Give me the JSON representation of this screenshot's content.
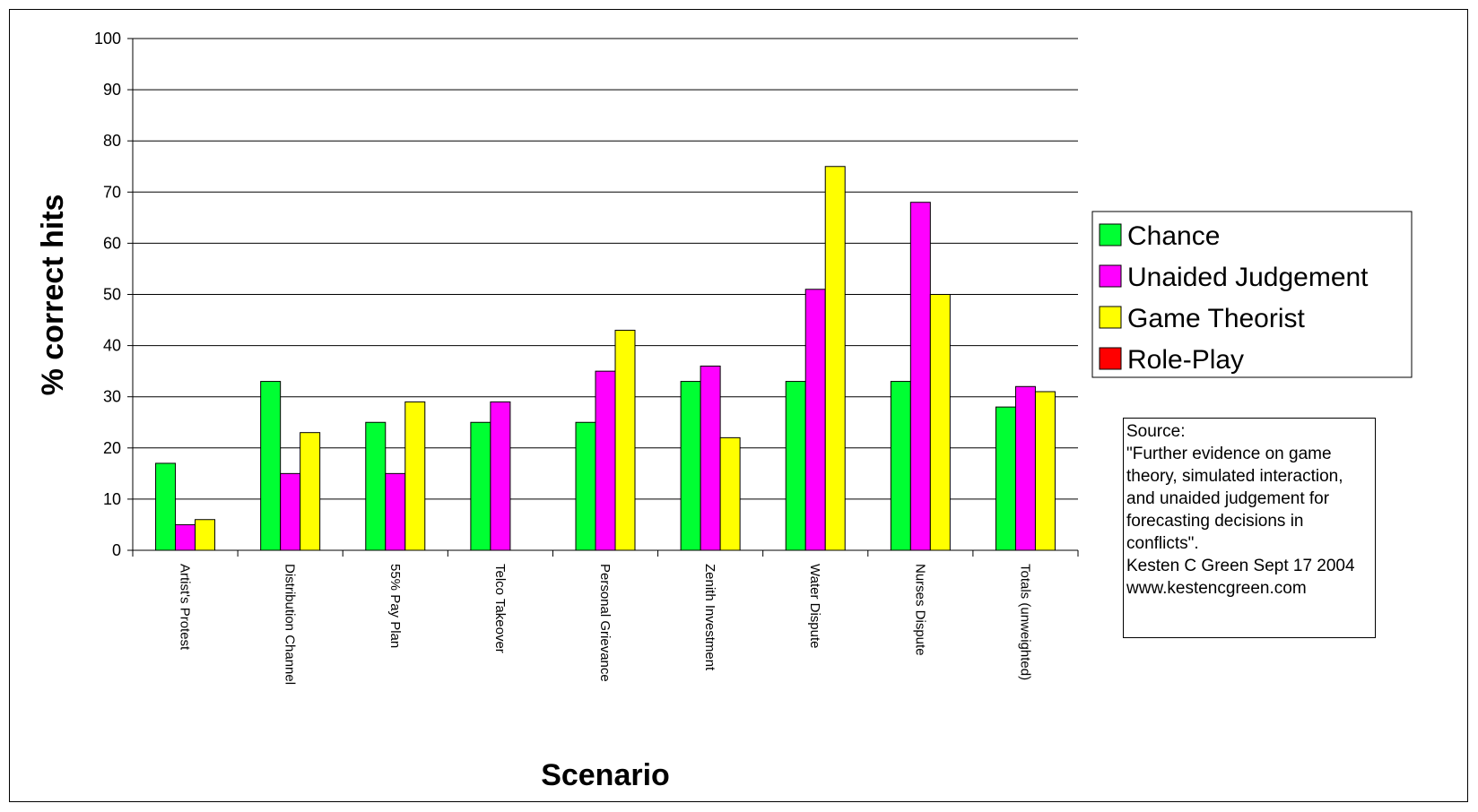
{
  "chart_data": {
    "type": "bar",
    "ylabel": "% correct hits",
    "xlabel": "Scenario",
    "ylim": [
      0,
      100
    ],
    "yticks": [
      0,
      10,
      20,
      30,
      40,
      50,
      60,
      70,
      80,
      90,
      100
    ],
    "grid": true,
    "legend_position": "right",
    "categories": [
      "Artist's Protest",
      "Distribution Channel",
      "55% Pay Plan",
      "Telco Takeover",
      "Personal Grievance",
      "Zenith Investment",
      "Water Dispute",
      "Nurses Dispute",
      "Totals (unweighted)"
    ],
    "series": [
      {
        "name": "Chance",
        "color": "#00ff33",
        "values": [
          17,
          33,
          25,
          25,
          25,
          33,
          33,
          33,
          28
        ]
      },
      {
        "name": "Unaided Judgement",
        "color": "#ff00ff",
        "values": [
          5,
          15,
          15,
          29,
          35,
          36,
          51,
          68,
          32
        ]
      },
      {
        "name": "Game Theorist",
        "color": "#ffff00",
        "values": [
          6,
          23,
          29,
          null,
          43,
          22,
          75,
          50,
          31
        ]
      },
      {
        "name": "Role-Play",
        "color": "#ff0000",
        "values": [
          null,
          null,
          null,
          null,
          null,
          null,
          null,
          null,
          null
        ]
      }
    ]
  },
  "source_note": {
    "lines": [
      "Source:",
      "\"Further evidence on game theory, simulated interaction, and unaided judgement for forecasting decisions in conflicts\".",
      "Kesten C Green Sept 17 2004",
      "www.kestencgreen.com"
    ]
  }
}
